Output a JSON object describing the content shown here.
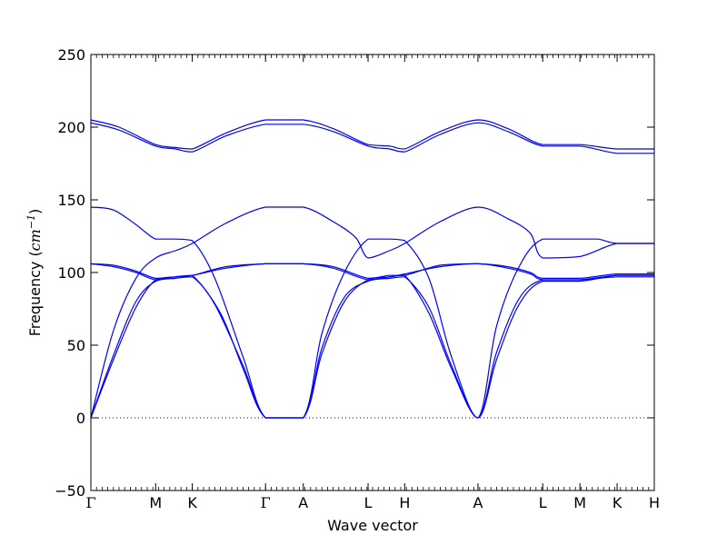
{
  "chart_data": {
    "type": "line",
    "xlabel": "Wave vector",
    "ylabel_prefix": "Frequency (",
    "ylabel_unit_base": "cm",
    "ylabel_unit_exp": "−1",
    "ylabel_suffix": ")",
    "ylim": [
      -50,
      250
    ],
    "y_ticks": [
      -50,
      0,
      50,
      100,
      150,
      200,
      250
    ],
    "zero_line": true,
    "line_color": "#0000ff",
    "x_ticks": [
      {
        "label": "Γ",
        "pos": 0.0
      },
      {
        "label": "M",
        "pos": 0.115
      },
      {
        "label": "K",
        "pos": 0.18
      },
      {
        "label": "Γ",
        "pos": 0.31
      },
      {
        "label": "A",
        "pos": 0.377
      },
      {
        "label": "L",
        "pos": 0.492
      },
      {
        "label": "H",
        "pos": 0.557
      },
      {
        "label": "A",
        "pos": 0.687
      },
      {
        "label": "L",
        "pos": 0.802
      },
      {
        "label": "M",
        "pos": 0.868
      },
      {
        "label": "K",
        "pos": 0.934
      },
      {
        "label": "H",
        "pos": 1.0
      }
    ],
    "series": [
      {
        "values": [
          [
            0.0,
            0
          ],
          [
            0.04,
            40
          ],
          [
            0.08,
            76
          ],
          [
            0.115,
            95
          ],
          [
            0.15,
            97
          ],
          [
            0.18,
            98
          ],
          [
            0.23,
            72
          ],
          [
            0.27,
            34
          ],
          [
            0.31,
            0
          ],
          [
            0.377,
            0
          ],
          [
            0.41,
            44
          ],
          [
            0.45,
            80
          ],
          [
            0.492,
            95
          ],
          [
            0.53,
            97
          ],
          [
            0.557,
            98
          ],
          [
            0.6,
            72
          ],
          [
            0.64,
            34
          ],
          [
            0.687,
            0
          ],
          [
            0.72,
            40
          ],
          [
            0.76,
            78
          ],
          [
            0.802,
            94
          ],
          [
            0.868,
            94
          ],
          [
            0.934,
            98
          ],
          [
            1.0,
            98
          ]
        ]
      },
      {
        "values": [
          [
            0.0,
            0
          ],
          [
            0.04,
            43
          ],
          [
            0.08,
            80
          ],
          [
            0.115,
            94
          ],
          [
            0.15,
            96
          ],
          [
            0.18,
            97
          ],
          [
            0.22,
            78
          ],
          [
            0.27,
            36
          ],
          [
            0.31,
            0
          ],
          [
            0.377,
            0
          ],
          [
            0.41,
            48
          ],
          [
            0.45,
            83
          ],
          [
            0.492,
            94
          ],
          [
            0.53,
            96
          ],
          [
            0.557,
            97
          ],
          [
            0.6,
            76
          ],
          [
            0.64,
            36
          ],
          [
            0.687,
            0
          ],
          [
            0.72,
            45
          ],
          [
            0.76,
            82
          ],
          [
            0.802,
            95
          ],
          [
            0.868,
            95
          ],
          [
            0.934,
            97
          ],
          [
            1.0,
            97
          ]
        ]
      },
      {
        "values": [
          [
            0.0,
            106
          ],
          [
            0.04,
            104
          ],
          [
            0.08,
            100
          ],
          [
            0.115,
            95
          ],
          [
            0.15,
            97
          ],
          [
            0.18,
            98
          ],
          [
            0.24,
            103
          ],
          [
            0.31,
            106
          ],
          [
            0.377,
            106
          ],
          [
            0.43,
            103
          ],
          [
            0.492,
            95
          ],
          [
            0.53,
            97
          ],
          [
            0.557,
            99
          ],
          [
            0.62,
            104
          ],
          [
            0.687,
            106
          ],
          [
            0.74,
            103
          ],
          [
            0.78,
            99
          ],
          [
            0.802,
            95
          ],
          [
            0.868,
            95
          ],
          [
            0.934,
            98
          ],
          [
            1.0,
            98
          ]
        ]
      },
      {
        "values": [
          [
            0.0,
            106
          ],
          [
            0.04,
            105
          ],
          [
            0.08,
            101
          ],
          [
            0.115,
            96
          ],
          [
            0.15,
            97
          ],
          [
            0.18,
            98
          ],
          [
            0.24,
            104
          ],
          [
            0.31,
            106
          ],
          [
            0.377,
            106
          ],
          [
            0.43,
            104
          ],
          [
            0.492,
            96
          ],
          [
            0.53,
            98
          ],
          [
            0.557,
            98
          ],
          [
            0.62,
            105
          ],
          [
            0.687,
            106
          ],
          [
            0.74,
            104
          ],
          [
            0.78,
            100
          ],
          [
            0.802,
            96
          ],
          [
            0.868,
            96
          ],
          [
            0.934,
            99
          ],
          [
            1.0,
            99
          ]
        ]
      },
      {
        "values": [
          [
            0.0,
            0
          ],
          [
            0.04,
            60
          ],
          [
            0.08,
            96
          ],
          [
            0.115,
            110
          ],
          [
            0.15,
            115
          ],
          [
            0.18,
            120
          ],
          [
            0.24,
            134
          ],
          [
            0.31,
            145
          ],
          [
            0.377,
            145
          ],
          [
            0.43,
            135
          ],
          [
            0.47,
            124
          ],
          [
            0.492,
            110
          ],
          [
            0.53,
            115
          ],
          [
            0.557,
            120
          ],
          [
            0.62,
            135
          ],
          [
            0.687,
            145
          ],
          [
            0.74,
            137
          ],
          [
            0.78,
            127
          ],
          [
            0.802,
            110
          ],
          [
            0.868,
            111
          ],
          [
            0.934,
            120
          ],
          [
            1.0,
            120
          ]
        ]
      },
      {
        "values": [
          [
            0.0,
            145
          ],
          [
            0.04,
            143
          ],
          [
            0.08,
            133
          ],
          [
            0.115,
            123
          ],
          [
            0.15,
            123
          ],
          [
            0.18,
            122
          ],
          [
            0.22,
            96
          ],
          [
            0.27,
            42
          ],
          [
            0.31,
            0
          ],
          [
            0.377,
            0
          ],
          [
            0.41,
            58
          ],
          [
            0.45,
            100
          ],
          [
            0.492,
            123
          ],
          [
            0.53,
            123
          ],
          [
            0.557,
            122
          ],
          [
            0.6,
            96
          ],
          [
            0.64,
            42
          ],
          [
            0.687,
            0
          ],
          [
            0.72,
            63
          ],
          [
            0.76,
            104
          ],
          [
            0.802,
            123
          ],
          [
            0.868,
            123
          ],
          [
            0.9,
            123
          ],
          [
            0.934,
            120
          ],
          [
            1.0,
            120
          ]
        ]
      },
      {
        "values": [
          [
            0.0,
            205
          ],
          [
            0.05,
            200
          ],
          [
            0.115,
            188
          ],
          [
            0.15,
            186
          ],
          [
            0.18,
            185
          ],
          [
            0.24,
            196
          ],
          [
            0.31,
            205
          ],
          [
            0.377,
            205
          ],
          [
            0.43,
            199
          ],
          [
            0.492,
            188
          ],
          [
            0.53,
            187
          ],
          [
            0.557,
            185
          ],
          [
            0.62,
            197
          ],
          [
            0.687,
            205
          ],
          [
            0.74,
            199
          ],
          [
            0.802,
            188
          ],
          [
            0.868,
            188
          ],
          [
            0.934,
            185
          ],
          [
            1.0,
            185
          ]
        ]
      },
      {
        "values": [
          [
            0.0,
            203
          ],
          [
            0.05,
            198
          ],
          [
            0.115,
            187
          ],
          [
            0.15,
            185
          ],
          [
            0.18,
            183
          ],
          [
            0.24,
            194
          ],
          [
            0.31,
            202
          ],
          [
            0.377,
            202
          ],
          [
            0.43,
            197
          ],
          [
            0.492,
            187
          ],
          [
            0.53,
            185
          ],
          [
            0.557,
            183
          ],
          [
            0.62,
            195
          ],
          [
            0.687,
            203
          ],
          [
            0.74,
            197
          ],
          [
            0.802,
            187
          ],
          [
            0.868,
            187
          ],
          [
            0.934,
            182
          ],
          [
            1.0,
            182
          ]
        ]
      }
    ]
  }
}
